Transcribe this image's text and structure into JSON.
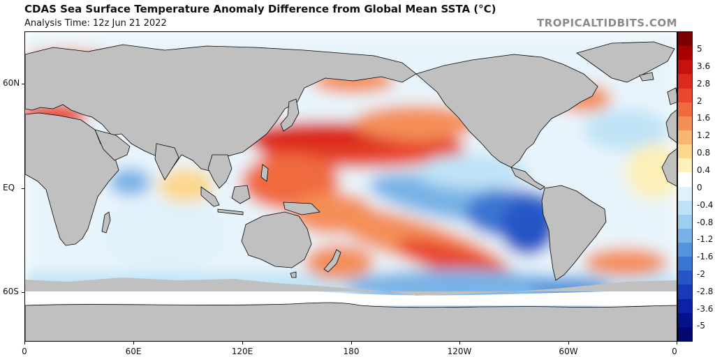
{
  "header": {
    "title": "CDAS Sea Surface Temperature Anomaly Difference from Global Mean SSTA (°C)",
    "subtitle": "Analysis Time: 12z Jun 21 2022",
    "watermark": "TROPICALTIDBITS.COM"
  },
  "map": {
    "lat_labels": [
      "60N",
      "EQ",
      "60S"
    ],
    "lon_labels": [
      "0",
      "60E",
      "120E",
      "180",
      "120W",
      "60W",
      "0"
    ],
    "land_color": "#c0c0c0",
    "ice_color": "#ffffff"
  },
  "colorbar": {
    "unit": "°C",
    "labels": [
      "5",
      "3.6",
      "2.8",
      "2",
      "1.6",
      "1.2",
      "0.8",
      "0.4",
      "0",
      "-0.4",
      "-0.8",
      "-1.2",
      "-1.6",
      "-2",
      "-2.8",
      "-3.6",
      "-5"
    ],
    "colors": [
      "#7d0000",
      "#a80000",
      "#c81010",
      "#dc2a1e",
      "#e8492e",
      "#f06a40",
      "#f48f58",
      "#f8b674",
      "#fcd88e",
      "#fdf0b8",
      "#ffffff",
      "#dff2fb",
      "#bfe3f6",
      "#9dcdef",
      "#78b2e6",
      "#5594dc",
      "#3a75d2",
      "#2656c6",
      "#163ab8",
      "#0c22a6",
      "#06128a",
      "#020870"
    ]
  }
}
